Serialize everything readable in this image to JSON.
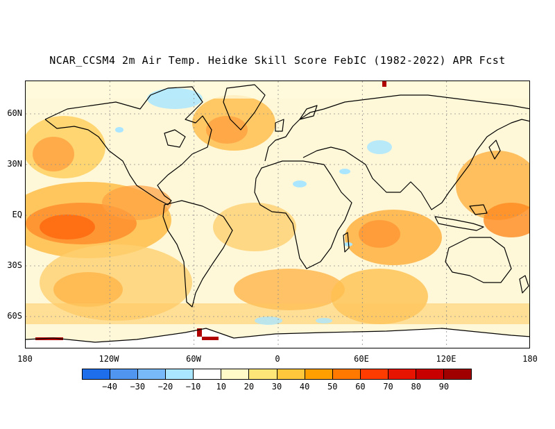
{
  "title": "NCAR_CCSM4 2m Air Temp. Heidke Skill Score FebIC (1982-2022) APR Fcst",
  "lat_labels": [
    "60N",
    "30N",
    "EQ",
    "30S",
    "60S"
  ],
  "lon_labels": [
    "180",
    "120W",
    "60W",
    "0",
    "60E",
    "120E",
    "180"
  ],
  "colorbar": {
    "ticks": [
      "-40",
      "-30",
      "-20",
      "-10",
      "10",
      "20",
      "30",
      "40",
      "50",
      "60",
      "70",
      "80",
      "90"
    ],
    "colors": [
      "#1e6eeb",
      "#5096f0",
      "#78b9fa",
      "#aae6ff",
      "#ffffff",
      "#fffac8",
      "#ffe678",
      "#ffc83c",
      "#ffa000",
      "#ff7800",
      "#ff3c00",
      "#e61400",
      "#c80000",
      "#a00000"
    ]
  },
  "map_colors": {
    "land_line": "#000000",
    "grid_line": "#8c8c8c",
    "skill_low": "#fff5c0",
    "skill_mid": "#ffd060",
    "skill_high": "#ff9a30",
    "skill_very_high": "#ff6a10",
    "skill_max": "#b00000",
    "skill_negative": "#aae6ff"
  }
}
